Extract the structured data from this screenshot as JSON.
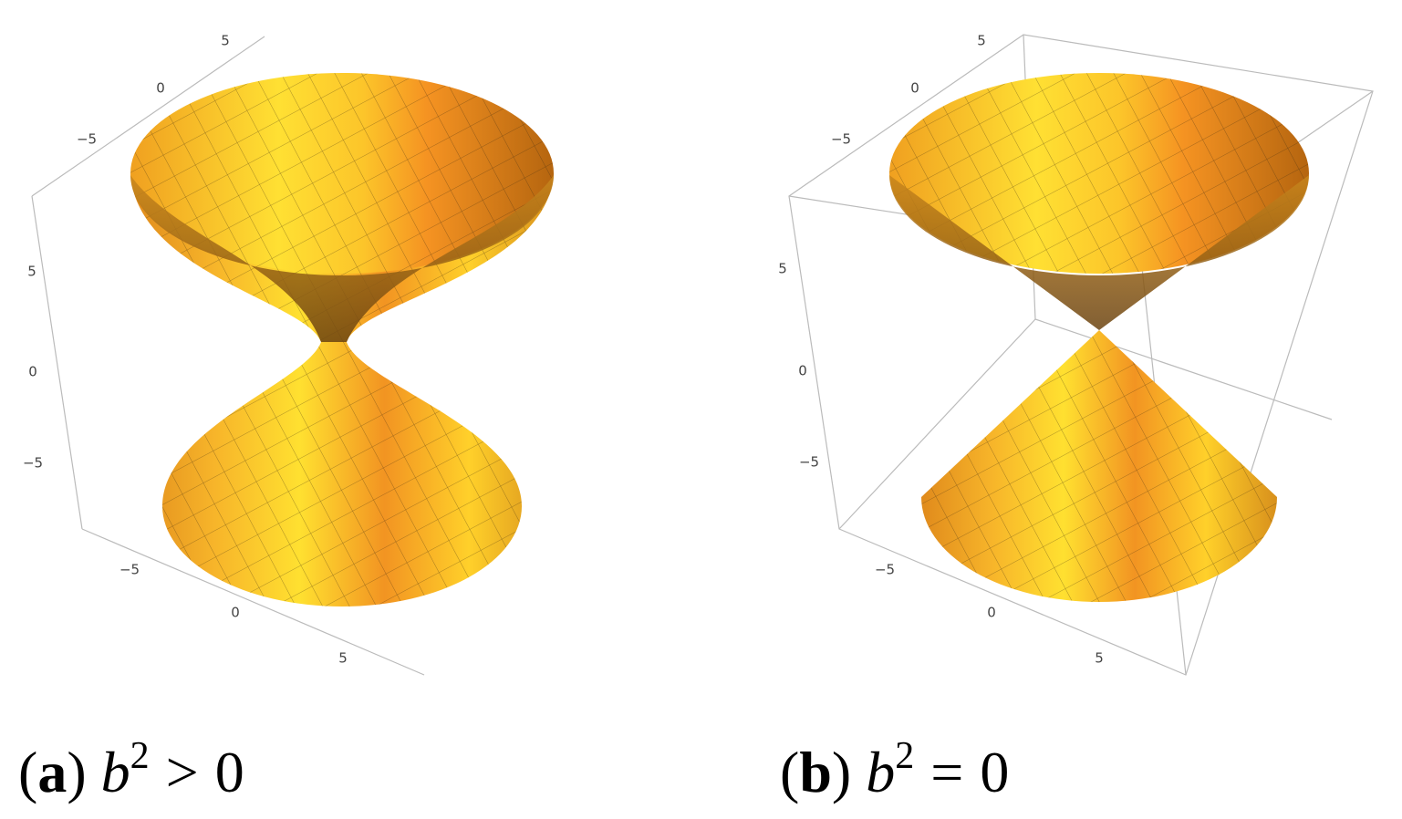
{
  "panels": [
    {
      "top_axis_ticks": [
        "5",
        "0",
        "−5"
      ],
      "vertical_axis_ticks": [
        "5",
        "0",
        "−5"
      ],
      "bottom_axis_ticks": [
        "−5",
        "0",
        "5"
      ],
      "caption": {
        "open": "(",
        "label": "a",
        "close": ")",
        "variable": "b",
        "exponent": "2",
        "relation": ">",
        "rhs": "0"
      }
    },
    {
      "top_axis_ticks": [
        "5",
        "0",
        "−5"
      ],
      "vertical_axis_ticks": [
        "5",
        "0",
        "−5"
      ],
      "bottom_axis_ticks": [
        "−5",
        "0",
        "5"
      ],
      "caption": {
        "open": "(",
        "label": "b",
        "close": ")",
        "variable": "b",
        "exponent": "2",
        "relation": "=",
        "rhs": "0"
      }
    }
  ]
}
